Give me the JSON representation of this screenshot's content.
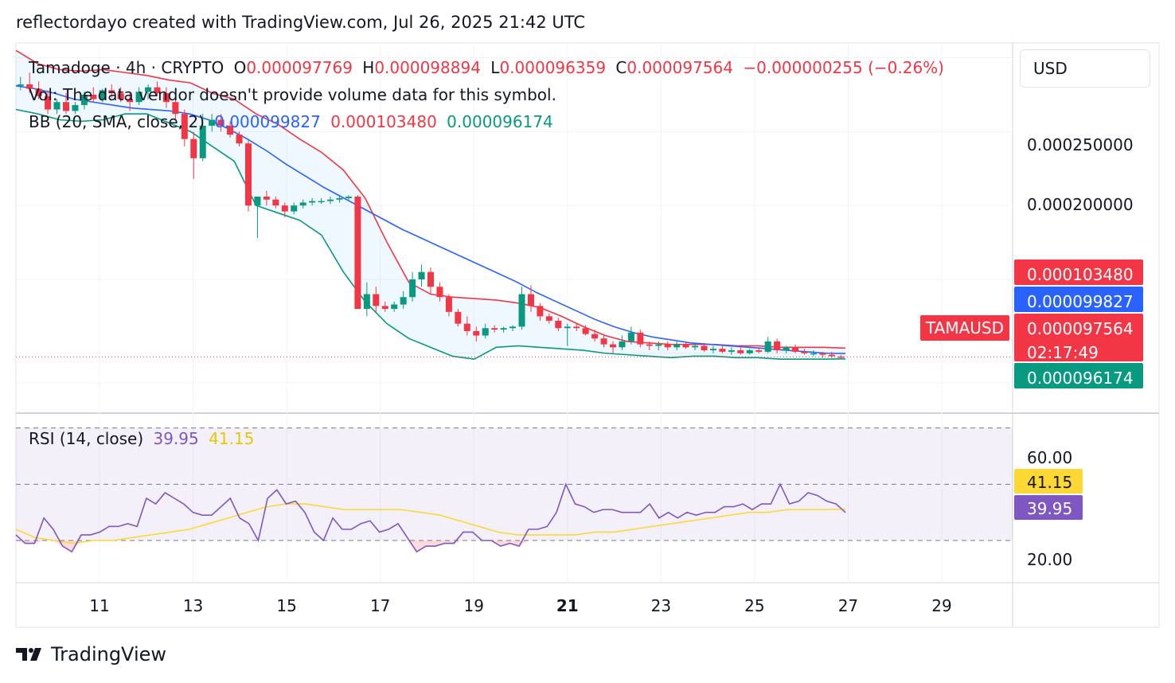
{
  "header": {
    "attribution": "reflectordayo created with TradingView.com, Jul 26, 2025 21:42 UTC"
  },
  "legend": {
    "symbol": "Tamadoge · 4h · CRYPTO",
    "o_label": "O",
    "o_value": "0.000097769",
    "h_label": "H",
    "h_value": "0.000098894",
    "l_label": "L",
    "l_value": "0.000096359",
    "c_label": "C",
    "c_value": "0.000097564",
    "change": "−0.000000255 (−0.26%)",
    "vol_text": "Vol: The data vendor doesn't provide volume data for this symbol.",
    "bb_label": "BB (20, SMA, close, 2)",
    "bb_basis": "0.000099827",
    "bb_upper": "0.000103480",
    "bb_lower": "0.000096174",
    "rsi_label": "RSI (14, close)",
    "rsi_value": "39.95",
    "rsi_ma_value": "41.15"
  },
  "currency_button": "USD",
  "price_axis": {
    "ticks": [
      "0.000250000",
      "0.000200000"
    ]
  },
  "price_tags": {
    "bb_upper": "0.000103480",
    "bb_basis": "0.000099827",
    "symbol_tag": "TAMAUSD",
    "last_price": "0.000097564",
    "countdown": "02:17:49",
    "bb_lower": "0.000096174"
  },
  "rsi_axis": {
    "ticks": [
      "60.00",
      "20.00"
    ],
    "ma_tag": "41.15",
    "rsi_tag": "39.95"
  },
  "time_axis": {
    "labels": [
      "11",
      "13",
      "15",
      "17",
      "19",
      "21",
      "23",
      "25",
      "27",
      "29"
    ],
    "bold_label": "21"
  },
  "brand": "TradingView",
  "colors": {
    "up": "#089981",
    "down": "#f23645",
    "bb_basis": "#2962ff",
    "bb_upper": "#f23645",
    "bb_lower": "#089981",
    "rsi": "#7e57c2",
    "rsi_ma": "#fdd835"
  },
  "chart_data": [
    {
      "type": "candlestick",
      "title": "Tamadoge · 4h · CRYPTO",
      "x_range": [
        "Jul 9",
        "Jul 30"
      ],
      "ylim": [
        6e-05,
        0.00031
      ],
      "candles_ohlc": [
        [
          0.000281,
          0.000287,
          0.000278,
          0.000282
        ],
        [
          0.000282,
          0.00029,
          0.000276,
          0.000279
        ],
        [
          0.000279,
          0.000284,
          0.000272,
          0.000274
        ],
        [
          0.000274,
          0.000278,
          0.000262,
          0.000265
        ],
        [
          0.000265,
          0.000272,
          0.000262,
          0.00027
        ],
        [
          0.00027,
          0.000276,
          0.000262,
          0.000264
        ],
        [
          0.000264,
          0.00027,
          0.000262,
          0.000268
        ],
        [
          0.000268,
          0.000277,
          0.000265,
          0.000275
        ],
        [
          0.000275,
          0.00028,
          0.00027,
          0.000272
        ],
        [
          0.000272,
          0.000279,
          0.00027,
          0.000278
        ],
        [
          0.000278,
          0.000282,
          0.000273,
          0.000276
        ],
        [
          0.000276,
          0.00028,
          0.00027,
          0.000272
        ],
        [
          0.000272,
          0.000276,
          0.000264,
          0.00027
        ],
        [
          0.00027,
          0.00028,
          0.000268,
          0.000277
        ],
        [
          0.000277,
          0.000282,
          0.000272,
          0.00028
        ],
        [
          0.00028,
          0.000284,
          0.000274,
          0.000276
        ],
        [
          0.000276,
          0.00028,
          0.000266,
          0.00027
        ],
        [
          0.00027,
          0.000274,
          0.000258,
          0.000262
        ],
        [
          0.000262,
          0.000265,
          0.00024,
          0.000245
        ],
        [
          0.000245,
          0.00025,
          0.000218,
          0.000232
        ],
        [
          0.000232,
          0.000262,
          0.00023,
          0.000254
        ],
        [
          0.000254,
          0.000262,
          0.00025,
          0.000258
        ],
        [
          0.000258,
          0.000262,
          0.00025,
          0.000254
        ],
        [
          0.000254,
          0.000257,
          0.000246,
          0.000248
        ],
        [
          0.000248,
          0.00025,
          0.00024,
          0.000242
        ],
        [
          0.000242,
          0.000244,
          0.000196,
          0.0002
        ],
        [
          0.0002,
          0.000204,
          0.000178,
          0.000206
        ],
        [
          0.000206,
          0.00021,
          0.0002,
          0.000204
        ],
        [
          0.000204,
          0.000206,
          0.000198,
          0.0002
        ],
        [
          0.0002,
          0.000202,
          0.000192,
          0.000196
        ],
        [
          0.000196,
          0.000202,
          0.000194,
          0.0002
        ],
        [
          0.0002,
          0.000204,
          0.000198,
          0.000202
        ],
        [
          0.000202,
          0.000205,
          0.0002,
          0.000203
        ],
        [
          0.000203,
          0.000205,
          0.000201,
          0.000203
        ],
        [
          0.000203,
          0.000206,
          0.000201,
          0.000204
        ],
        [
          0.000204,
          0.000206,
          0.000202,
          0.000205
        ],
        [
          0.000205,
          0.000207,
          0.000203,
          0.000206
        ],
        [
          0.000206,
          0.000207,
          0.000166,
          0.00013
        ],
        [
          0.00013,
          0.000148,
          0.000125,
          0.00014
        ],
        [
          0.00014,
          0.000145,
          0.000128,
          0.000132
        ],
        [
          0.000132,
          0.000135,
          0.000128,
          0.00013
        ],
        [
          0.00013,
          0.000135,
          0.000128,
          0.000133
        ],
        [
          0.000133,
          0.000142,
          0.00013,
          0.000138
        ],
        [
          0.000138,
          0.000155,
          0.000135,
          0.00015
        ],
        [
          0.00015,
          0.00016,
          0.000145,
          0.000155
        ],
        [
          0.000155,
          0.000158,
          0.00014,
          0.000145
        ],
        [
          0.000145,
          0.000148,
          0.000135,
          0.000138
        ],
        [
          0.000138,
          0.00014,
          0.000125,
          0.000128
        ],
        [
          0.000128,
          0.00013,
          0.000118,
          0.00012
        ],
        [
          0.00012,
          0.000125,
          0.000112,
          0.000115
        ],
        [
          0.000115,
          0.000118,
          0.000108,
          0.000112
        ],
        [
          0.000112,
          0.00012,
          0.00011,
          0.000117
        ],
        [
          0.000117,
          0.000119,
          0.000114,
          0.000116
        ],
        [
          0.000116,
          0.000118,
          0.000114,
          0.000117
        ],
        [
          0.000117,
          0.000119,
          0.000115,
          0.000118
        ],
        [
          0.000118,
          0.000145,
          0.000116,
          0.00014
        ],
        [
          0.00014,
          0.000146,
          0.000128,
          0.000132
        ],
        [
          0.000132,
          0.000134,
          0.000122,
          0.000125
        ],
        [
          0.000125,
          0.000127,
          0.00012,
          0.000122
        ],
        [
          0.000122,
          0.000124,
          0.000115,
          0.000117
        ],
        [
          0.000117,
          0.00012,
          0.000105,
          0.000118
        ],
        [
          0.000118,
          0.00012,
          0.000115,
          0.000117
        ],
        [
          0.000117,
          0.000119,
          0.000112,
          0.000113
        ],
        [
          0.000113,
          0.000116,
          0.000108,
          0.00011
        ],
        [
          0.00011,
          0.000112,
          0.000104,
          0.000106
        ],
        [
          0.000106,
          0.000108,
          0.0001,
          0.000104
        ],
        [
          0.000104,
          0.000112,
          0.000102,
          0.000108
        ],
        [
          0.000108,
          0.000118,
          0.000106,
          0.000114
        ],
        [
          0.000114,
          0.000116,
          0.000104,
          0.000106
        ],
        [
          0.000106,
          0.000108,
          0.000102,
          0.000105
        ],
        [
          0.000105,
          0.000108,
          0.000102,
          0.000106
        ],
        [
          0.000106,
          0.000108,
          0.000102,
          0.000104
        ],
        [
          0.000104,
          0.000108,
          0.000102,
          0.000106
        ],
        [
          0.000106,
          0.000108,
          0.000103,
          0.000104
        ],
        [
          0.000104,
          0.000107,
          0.000102,
          0.000105
        ],
        [
          0.000105,
          0.000107,
          0.000101,
          0.000102
        ],
        [
          0.000102,
          0.000105,
          0.0001,
          0.000103
        ],
        [
          0.000103,
          0.000105,
          0.0001,
          0.000101
        ],
        [
          0.000101,
          0.000104,
          9.9e-05,
          0.000102
        ],
        [
          0.000102,
          0.000104,
          9.9e-05,
          0.0001
        ],
        [
          0.0001,
          0.000103,
          9.9e-05,
          0.000102
        ],
        [
          0.000102,
          0.000104,
          0.0001,
          0.000101
        ],
        [
          0.000101,
          0.000111,
          0.0001,
          0.000108
        ],
        [
          0.000108,
          0.00011,
          0.0001,
          0.000102
        ],
        [
          0.000102,
          0.000105,
          0.0001,
          0.000104
        ],
        [
          0.000104,
          0.000106,
          0.0001,
          0.000101
        ],
        [
          0.000101,
          0.000103,
          9.9e-05,
          0.0001
        ],
        [
          0.0001,
          0.000102,
          9.8e-05,
          0.0001
        ],
        [
          0.0001,
          0.000101,
          9.7e-05,
          9.9e-05
        ],
        [
          9.9e-05,
          0.000101,
          9.7e-05,
          9.8e-05
        ],
        [
          9.7769e-05,
          9.8894e-05,
          9.6359e-05,
          9.7564e-05
        ]
      ],
      "bollinger": {
        "basis": [
          0.000281,
          0.000279,
          0.000276,
          0.000272,
          0.00027,
          0.000268,
          0.000266,
          0.000265,
          0.000264,
          0.000262,
          0.000258,
          0.000252,
          0.000245,
          0.000237,
          0.000228,
          0.00022,
          0.000212,
          0.000205,
          0.000198,
          0.000191,
          0.000184,
          0.000178,
          0.000172,
          0.000166,
          0.00016,
          0.000154,
          0.000148,
          0.000141,
          0.000135,
          0.000129,
          0.000123,
          0.000118,
          0.000114,
          0.000111,
          0.000109,
          0.000107,
          0.000106,
          0.000105,
          0.000104,
          0.000103,
          0.000102,
          0.000101,
          0.0001,
          9.9827e-05
        ],
        "upper": [
          0.000305,
          0.000296,
          0.000292,
          0.000291,
          0.000292,
          0.00029,
          0.000288,
          0.000285,
          0.000283,
          0.000276,
          0.000272,
          0.000262,
          0.000255,
          0.000245,
          0.000236,
          0.000224,
          0.000205,
          0.000175,
          0.000148,
          0.00014,
          0.000138,
          0.000137,
          0.000136,
          0.000134,
          0.000131,
          0.000125,
          0.000118,
          0.000112,
          0.000108,
          0.000107,
          0.000106,
          0.000106,
          0.000106,
          0.000105,
          0.000105,
          0.000104,
          0.000104,
          0.000104,
          0.00010348
        ],
        "lower": [
          0.000265,
          0.000262,
          0.000258,
          0.000257,
          0.000258,
          0.000262,
          0.000262,
          0.000256,
          0.00025,
          0.00024,
          0.00023,
          0.0002,
          0.000195,
          0.00019,
          0.00018,
          0.000155,
          0.000135,
          0.00012,
          0.00011,
          0.000104,
          9.8e-05,
          9.6e-05,
          0.000104,
          0.000105,
          0.000104,
          0.000103,
          0.000102,
          0.0001,
          9.9e-05,
          9.8e-05,
          9.7e-05,
          9.8e-05,
          9.8e-05,
          9.7e-05,
          9.7e-05,
          9.6e-05,
          9.6e-05,
          9.6e-05,
          9.6174e-05
        ]
      }
    },
    {
      "type": "line",
      "title": "RSI (14, close)",
      "ylim": [
        15,
        75
      ],
      "bands": [
        30,
        50,
        70
      ],
      "series": [
        {
          "name": "RSI",
          "values": [
            32,
            29,
            29,
            38,
            34,
            28,
            26,
            32,
            32,
            33,
            35,
            35,
            36,
            35,
            45,
            43,
            47,
            45,
            43,
            40,
            39,
            39,
            42,
            45,
            38,
            36,
            30,
            45,
            48,
            43,
            44,
            40,
            33,
            30,
            38,
            34,
            34,
            36,
            37,
            33,
            34,
            36,
            31,
            26,
            28,
            28,
            29,
            29,
            33,
            33,
            30,
            30,
            28,
            29,
            28,
            34,
            34,
            35,
            40,
            50,
            43,
            42,
            40,
            41,
            41,
            40,
            40,
            40,
            43,
            38,
            40,
            38,
            40,
            39,
            40,
            40,
            42,
            42,
            43,
            41,
            43,
            43,
            50,
            43,
            44,
            47,
            46,
            44,
            43,
            39.95
          ]
        },
        {
          "name": "RSI-based MA",
          "values": [
            34,
            31,
            30,
            29,
            30,
            30,
            31,
            32,
            33,
            34,
            36,
            38,
            40,
            42,
            43,
            43,
            42,
            41,
            41,
            41,
            41,
            40,
            39,
            37,
            35,
            33,
            32,
            32,
            32,
            32,
            33,
            33,
            34,
            35,
            36,
            37,
            38,
            39,
            40,
            40,
            41,
            41,
            41,
            41.15
          ]
        }
      ]
    }
  ]
}
